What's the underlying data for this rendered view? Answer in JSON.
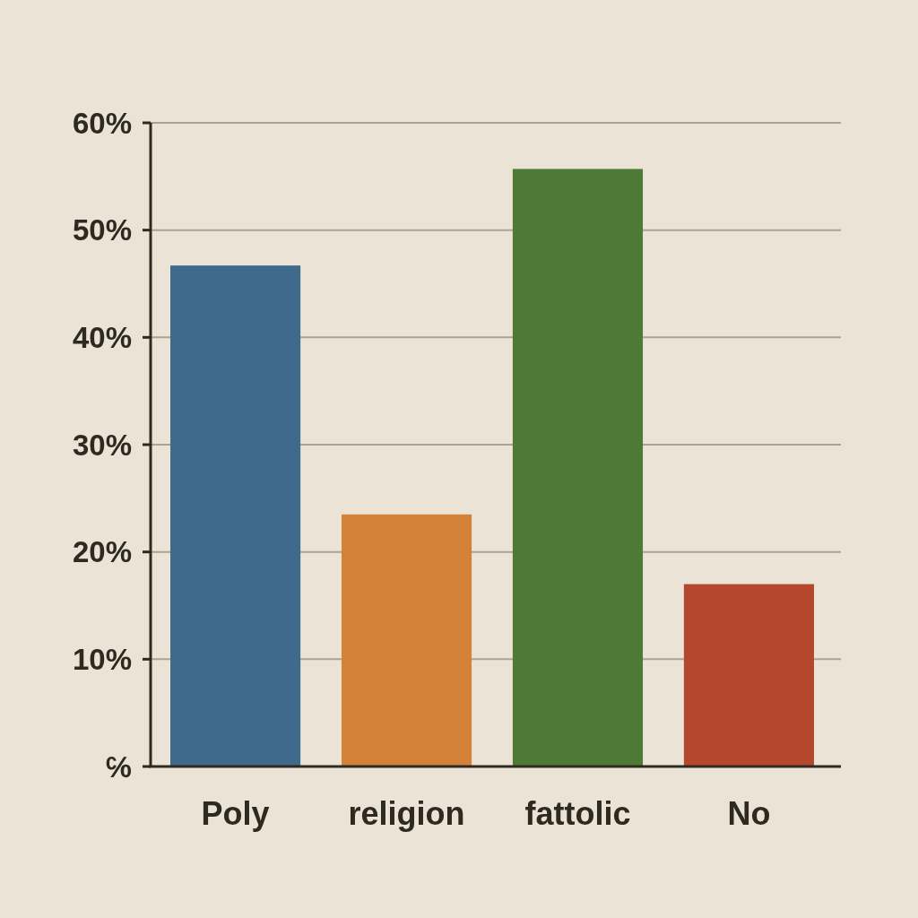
{
  "chart_data": {
    "type": "bar",
    "categories": [
      "Poly",
      "religion",
      "fattolic",
      "No"
    ],
    "values": [
      46.7,
      23.5,
      55.7,
      17.0
    ],
    "colors": [
      "#3f6a8c",
      "#d4813a",
      "#4e7a38",
      "#b5472e"
    ],
    "ylim": [
      0,
      60
    ],
    "yticks": [
      {
        "value": 0,
        "label": "℅"
      },
      {
        "value": 10,
        "label": "10%"
      },
      {
        "value": 20,
        "label": "20%"
      },
      {
        "value": 30,
        "label": "30%"
      },
      {
        "value": 40,
        "label": "40%"
      },
      {
        "value": 50,
        "label": "50%"
      },
      {
        "value": 60,
        "label": "60%"
      }
    ],
    "grid": "y"
  }
}
